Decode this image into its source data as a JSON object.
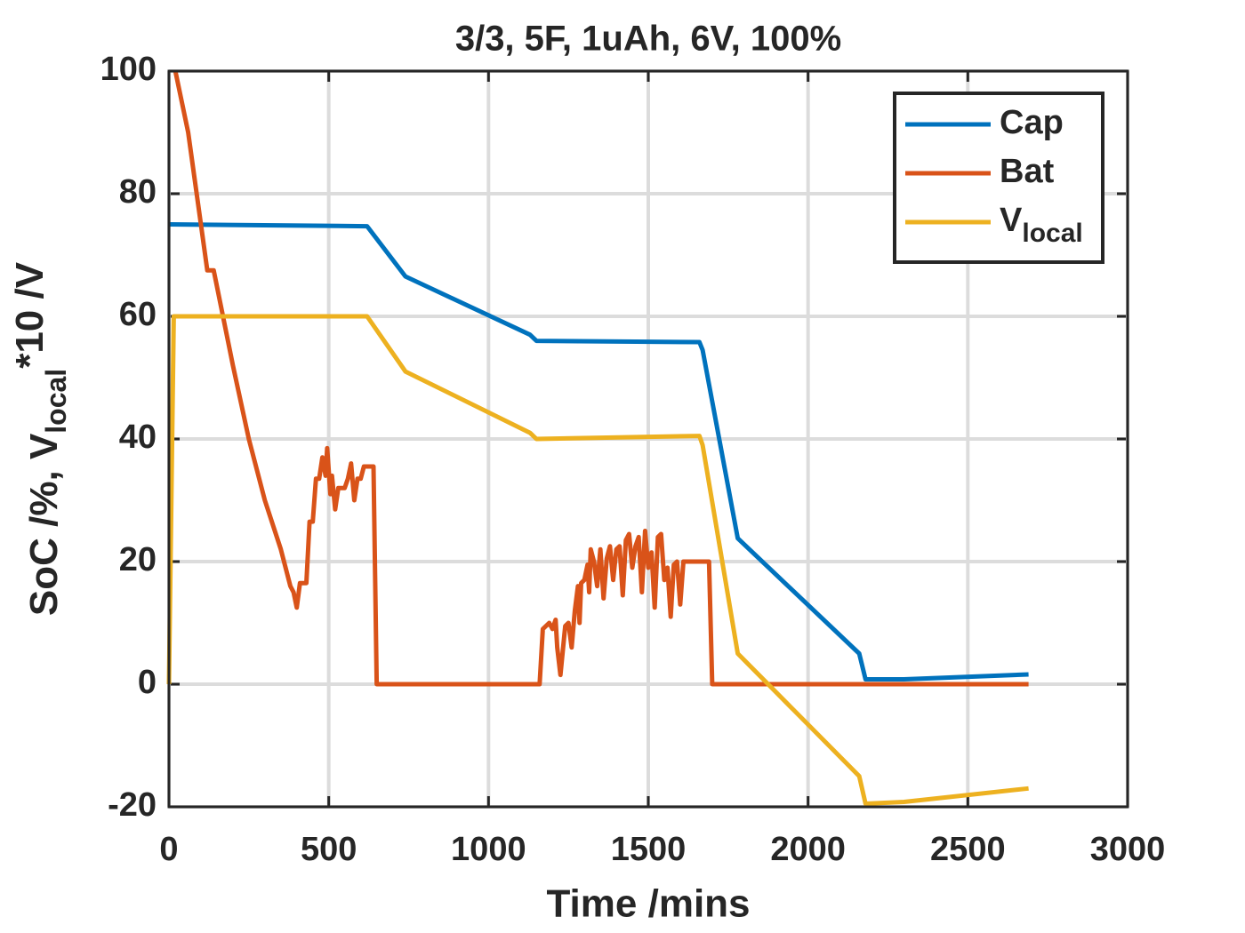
{
  "chart_data": {
    "type": "line",
    "title": "3/3, 5F, 1uAh, 6V, 100%",
    "xlabel": "Time /mins",
    "ylabel": "SoC /%, V",
    "ylabel_subscript": "local",
    "ylabel_suffix": "*10 /V",
    "xlim": [
      0,
      3000
    ],
    "xticks": [
      0,
      500,
      1000,
      1500,
      2000,
      2500,
      3000
    ],
    "ylim": [
      -20,
      100
    ],
    "yticks": [
      -20,
      0,
      20,
      40,
      60,
      80,
      100
    ],
    "grid": true,
    "legend": "upper right",
    "series": [
      {
        "name": "Cap",
        "color": "#0072BD",
        "x": [
          0,
          620,
          740,
          1130,
          1150,
          1660,
          1670,
          1780,
          2160,
          2180,
          2300,
          2690
        ],
        "values": [
          75,
          74.7,
          66.5,
          57,
          56,
          55.8,
          54.5,
          23.8,
          5,
          0.8,
          0.8,
          1.6
        ]
      },
      {
        "name": "Bat",
        "color": "#D95319",
        "x": [
          20,
          40,
          60,
          120,
          140,
          200,
          250,
          300,
          350,
          380,
          390,
          400,
          410,
          430,
          440,
          450,
          460,
          470,
          480,
          490,
          495,
          505,
          510,
          520,
          530,
          550,
          560,
          570,
          580,
          590,
          600,
          610,
          640,
          650,
          1160,
          1170,
          1190,
          1200,
          1210,
          1215,
          1225,
          1240,
          1250,
          1260,
          1270,
          1280,
          1285,
          1290,
          1300,
          1310,
          1315,
          1320,
          1330,
          1340,
          1350,
          1360,
          1370,
          1380,
          1390,
          1400,
          1410,
          1420,
          1430,
          1440,
          1450,
          1460,
          1470,
          1480,
          1490,
          1500,
          1510,
          1520,
          1530,
          1540,
          1550,
          1560,
          1570,
          1580,
          1590,
          1600,
          1610,
          1690,
          1700,
          2690
        ],
        "values": [
          100,
          95,
          90,
          67.5,
          67.5,
          52,
          40,
          30,
          22,
          16,
          15,
          12.5,
          16.5,
          16.5,
          26.5,
          26.5,
          33.5,
          33.5,
          37,
          34,
          38.5,
          31,
          34,
          28.5,
          32,
          32,
          33.5,
          36,
          30,
          33.5,
          33.5,
          35.5,
          35.5,
          0,
          0,
          9,
          10,
          9,
          10.5,
          6,
          1.5,
          9.5,
          10,
          6,
          12,
          16,
          10,
          16.5,
          17,
          19.5,
          15,
          22,
          20,
          16,
          22,
          14,
          20.5,
          22.5,
          17,
          22,
          22.5,
          14.5,
          23.5,
          24.5,
          19,
          22.5,
          24,
          15,
          25,
          19,
          21.5,
          12.5,
          24,
          24.5,
          17,
          19,
          11,
          19.5,
          20,
          13,
          20,
          20,
          0,
          0
        ]
      },
      {
        "name": "V",
        "name_subscript": "local",
        "color": "#EDB120",
        "x": [
          0,
          15,
          620,
          740,
          1130,
          1150,
          1660,
          1670,
          1780,
          2160,
          2180,
          2300,
          2690
        ],
        "values": [
          0,
          60,
          60,
          51,
          41,
          40,
          40.5,
          39,
          5,
          -15,
          -19.5,
          -19.2,
          -17
        ]
      }
    ]
  }
}
